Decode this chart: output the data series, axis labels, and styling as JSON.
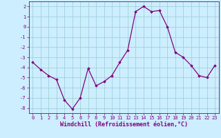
{
  "x": [
    0,
    1,
    2,
    3,
    4,
    5,
    6,
    7,
    8,
    9,
    10,
    11,
    12,
    13,
    14,
    15,
    16,
    17,
    18,
    19,
    20,
    21,
    22,
    23
  ],
  "y": [
    -3.5,
    -4.2,
    -4.8,
    -5.2,
    -7.2,
    -8.1,
    -7.0,
    -4.1,
    -5.8,
    -5.4,
    -4.8,
    -3.5,
    -2.3,
    1.5,
    2.0,
    1.5,
    1.6,
    0.0,
    -2.5,
    -3.0,
    -3.8,
    -4.8,
    -5.0,
    -3.8
  ],
  "line_color": "#800080",
  "marker": "D",
  "marker_size": 1.8,
  "bg_color": "#cceeff",
  "grid_color": "#99cccc",
  "xlabel": "Windchill (Refroidissement éolien,°C)",
  "ylim": [
    -8.5,
    2.5
  ],
  "xlim": [
    -0.5,
    23.5
  ],
  "yticks": [
    -8,
    -7,
    -6,
    -5,
    -4,
    -3,
    -2,
    -1,
    0,
    1,
    2
  ],
  "xticks": [
    0,
    1,
    2,
    3,
    4,
    5,
    6,
    7,
    8,
    9,
    10,
    11,
    12,
    13,
    14,
    15,
    16,
    17,
    18,
    19,
    20,
    21,
    22,
    23
  ],
  "tick_label_fontsize": 5.0,
  "xlabel_fontsize": 6.0,
  "line_width": 0.9,
  "label_color": "#800080"
}
